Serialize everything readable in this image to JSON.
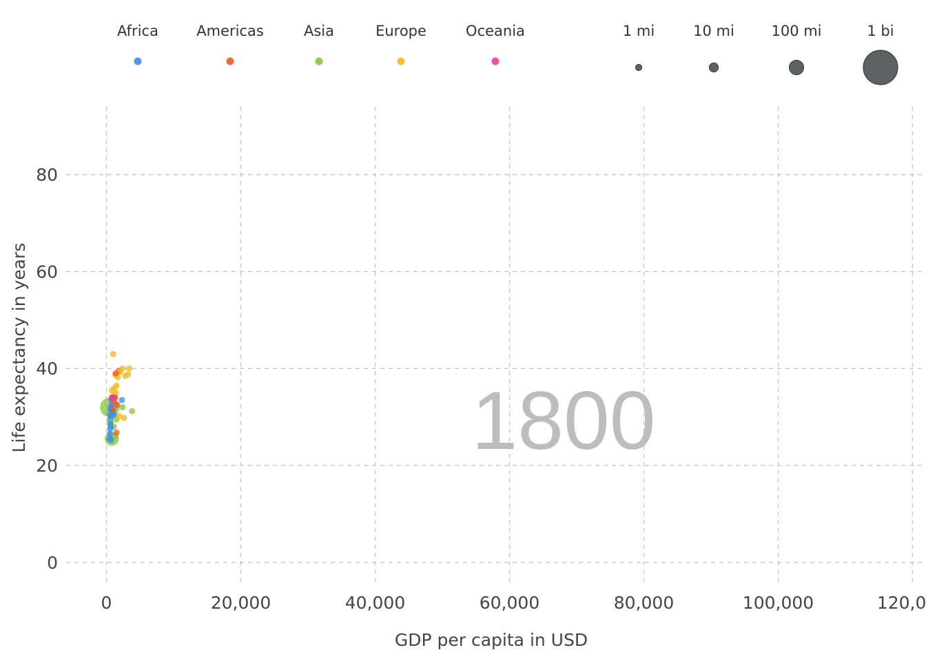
{
  "chart_data": {
    "type": "scatter",
    "title": "",
    "year_label": "1800",
    "xlabel": "GDP per capita in USD",
    "ylabel": "Life expectancy in years",
    "xlim": [
      -6000,
      122000
    ],
    "ylim": [
      -4,
      94
    ],
    "x_ticks": [
      0,
      20000,
      40000,
      60000,
      80000,
      100000,
      120000
    ],
    "x_tick_labels": [
      "0",
      "20,000",
      "40,000",
      "60,000",
      "80,000",
      "100,000",
      "120,000"
    ],
    "y_ticks": [
      0,
      20,
      40,
      60,
      80
    ],
    "y_tick_labels": [
      "0",
      "20",
      "40",
      "60",
      "80"
    ],
    "grid": true,
    "legend_position": "top",
    "continent_legend": [
      {
        "name": "Africa",
        "color": "#3d8ee8"
      },
      {
        "name": "Americas",
        "color": "#ee5a24"
      },
      {
        "name": "Asia",
        "color": "#8cc63f"
      },
      {
        "name": "Europe",
        "color": "#f6b921"
      },
      {
        "name": "Oceania",
        "color": "#ec3f96"
      }
    ],
    "size_legend": [
      {
        "label": "1 mi",
        "population": 1000000
      },
      {
        "label": "10 mi",
        "population": 10000000
      },
      {
        "label": "100 mi",
        "population": 100000000
      },
      {
        "label": "1 bi",
        "population": 1000000000
      }
    ],
    "series": [
      {
        "name": "Africa",
        "color": "#3d8ee8",
        "points": [
          {
            "x": 500,
            "y": 29.5,
            "pop": 3000000
          },
          {
            "x": 550,
            "y": 30.5,
            "pop": 2500000
          },
          {
            "x": 600,
            "y": 31.5,
            "pop": 2000000
          },
          {
            "x": 650,
            "y": 32.0,
            "pop": 1500000
          },
          {
            "x": 700,
            "y": 30.0,
            "pop": 4000000
          },
          {
            "x": 580,
            "y": 28.5,
            "pop": 1200000
          },
          {
            "x": 620,
            "y": 29.0,
            "pop": 2200000
          },
          {
            "x": 750,
            "y": 33.5,
            "pop": 1800000
          },
          {
            "x": 800,
            "y": 32.5,
            "pop": 1000000
          },
          {
            "x": 520,
            "y": 26.5,
            "pop": 900000
          },
          {
            "x": 480,
            "y": 25.5,
            "pop": 1100000
          },
          {
            "x": 900,
            "y": 31.0,
            "pop": 1400000
          },
          {
            "x": 950,
            "y": 34.0,
            "pop": 700000
          },
          {
            "x": 1100,
            "y": 30.5,
            "pop": 900000
          },
          {
            "x": 2300,
            "y": 33.5,
            "pop": 1300000
          },
          {
            "x": 560,
            "y": 27.5,
            "pop": 1600000
          },
          {
            "x": 640,
            "y": 28.0,
            "pop": 2500000
          },
          {
            "x": 700,
            "y": 25.2,
            "pop": 800000
          }
        ]
      },
      {
        "name": "Americas",
        "color": "#ee5a24",
        "points": [
          {
            "x": 1900,
            "y": 39.5,
            "pop": 4000000
          },
          {
            "x": 1200,
            "y": 33.0,
            "pop": 1000000
          },
          {
            "x": 1600,
            "y": 32.5,
            "pop": 1500000
          },
          {
            "x": 1000,
            "y": 31.5,
            "pop": 1200000
          },
          {
            "x": 1500,
            "y": 26.8,
            "pop": 800000
          },
          {
            "x": 1400,
            "y": 39.0,
            "pop": 700000
          },
          {
            "x": 1300,
            "y": 34.0,
            "pop": 600000
          }
        ]
      },
      {
        "name": "Asia",
        "color": "#8cc63f",
        "points": [
          {
            "x": 500,
            "y": 32.0,
            "pop": 320000000
          },
          {
            "x": 800,
            "y": 25.5,
            "pop": 170000000
          },
          {
            "x": 1000,
            "y": 31.0,
            "pop": 30000000
          },
          {
            "x": 2400,
            "y": 32.0,
            "pop": 2000000
          },
          {
            "x": 3800,
            "y": 31.2,
            "pop": 2000000
          },
          {
            "x": 1100,
            "y": 28.0,
            "pop": 4000000
          },
          {
            "x": 1300,
            "y": 26.0,
            "pop": 8000000
          },
          {
            "x": 700,
            "y": 30.0,
            "pop": 10000000
          },
          {
            "x": 1500,
            "y": 29.5,
            "pop": 3000000
          },
          {
            "x": 900,
            "y": 34.0,
            "pop": 5000000
          },
          {
            "x": 600,
            "y": 29.0,
            "pop": 2000000
          }
        ]
      },
      {
        "name": "Europe",
        "color": "#f6b921",
        "points": [
          {
            "x": 1000,
            "y": 43.0,
            "pop": 900000
          },
          {
            "x": 1300,
            "y": 38.7,
            "pop": 5000000
          },
          {
            "x": 2400,
            "y": 40.0,
            "pop": 3000000
          },
          {
            "x": 3400,
            "y": 40.0,
            "pop": 1500000
          },
          {
            "x": 3200,
            "y": 38.8,
            "pop": 9000000
          },
          {
            "x": 2800,
            "y": 38.5,
            "pop": 2000000
          },
          {
            "x": 2000,
            "y": 39.3,
            "pop": 2500000
          },
          {
            "x": 1700,
            "y": 38.2,
            "pop": 30000000
          },
          {
            "x": 1200,
            "y": 36.0,
            "pop": 12000000
          },
          {
            "x": 800,
            "y": 35.5,
            "pop": 6000000
          },
          {
            "x": 1400,
            "y": 35.0,
            "pop": 4000000
          },
          {
            "x": 1100,
            "y": 34.5,
            "pop": 15000000
          },
          {
            "x": 2600,
            "y": 29.8,
            "pop": 8000000
          },
          {
            "x": 1900,
            "y": 30.2,
            "pop": 1500000
          },
          {
            "x": 900,
            "y": 33.0,
            "pop": 2000000
          },
          {
            "x": 1500,
            "y": 36.5,
            "pop": 3000000
          }
        ]
      },
      {
        "name": "Oceania",
        "color": "#ec3f96",
        "points": [
          {
            "x": 800,
            "y": 34.0,
            "pop": 300000
          },
          {
            "x": 1100,
            "y": 34.0,
            "pop": 100000
          }
        ]
      }
    ]
  }
}
